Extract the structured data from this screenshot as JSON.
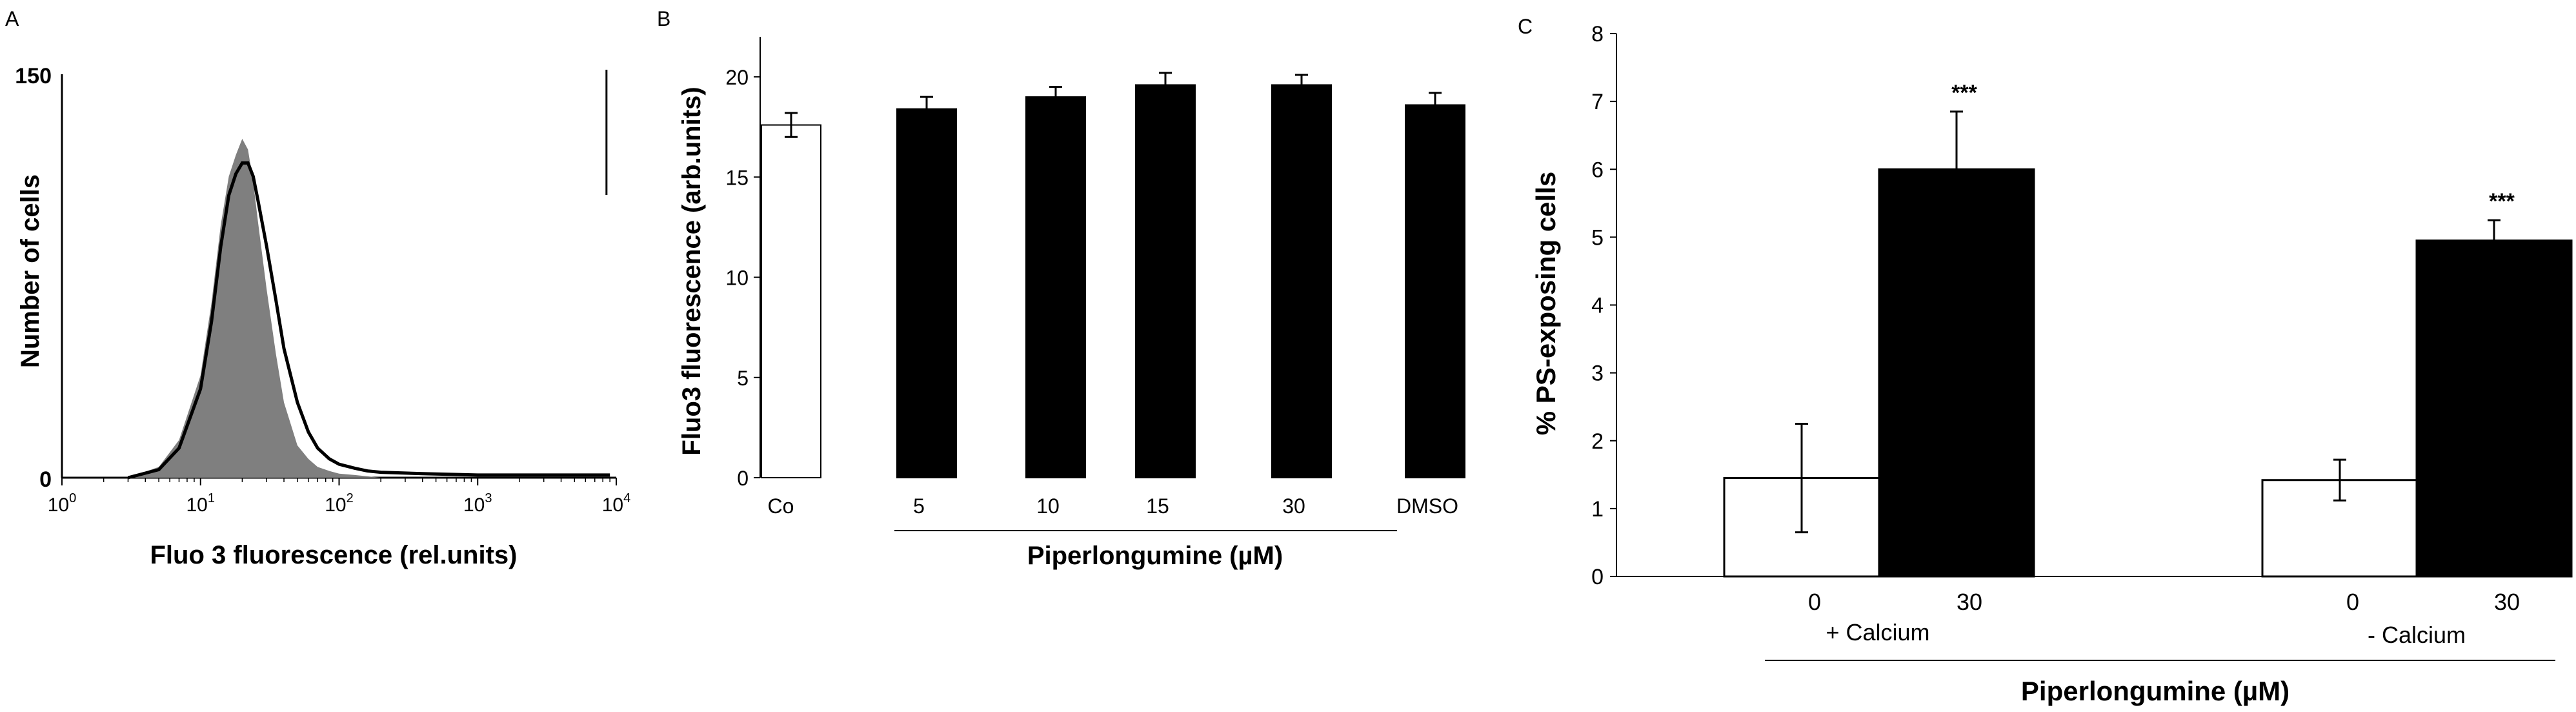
{
  "chart_data": [
    {
      "panel_label": "A",
      "type": "area",
      "ylabel": "Number of cells",
      "xlabel": "Fluo 3 fluorescence (rel.units)",
      "x_scale": "log",
      "xlim": [
        1,
        10000
      ],
      "ylim": [
        0,
        150
      ],
      "x_ticks": [
        {
          "value": 1,
          "base": "10",
          "exp": "0"
        },
        {
          "value": 10,
          "base": "10",
          "exp": "1"
        },
        {
          "value": 100,
          "base": "10",
          "exp": "2"
        },
        {
          "value": 1000,
          "base": "10",
          "exp": "3"
        },
        {
          "value": 10000,
          "base": "10",
          "exp": "4"
        }
      ],
      "y_ticks": [
        "150",
        "0"
      ],
      "series": [
        {
          "style": "filled",
          "color": "#7f7f7f",
          "x": [
            3,
            5,
            7,
            10,
            12,
            14,
            16,
            18,
            20,
            22,
            24,
            26,
            30,
            35,
            40,
            50,
            60,
            70,
            85,
            100,
            130,
            160,
            200
          ],
          "y": [
            0,
            4,
            14,
            38,
            65,
            94,
            112,
            120,
            126,
            122,
            110,
            95,
            70,
            46,
            28,
            12,
            7,
            4,
            2.5,
            1.5,
            1,
            0.5,
            0
          ]
        },
        {
          "style": "outline",
          "color": "#000000",
          "x": [
            3,
            5,
            7,
            10,
            12,
            14,
            16,
            18,
            20,
            22,
            24,
            26,
            30,
            35,
            40,
            50,
            60,
            70,
            85,
            100,
            130,
            160,
            200,
            400,
            1000,
            3000,
            6000,
            9000
          ],
          "y": [
            0,
            3,
            11,
            33,
            58,
            86,
            105,
            113,
            117,
            117,
            112,
            103,
            86,
            66,
            48,
            28,
            17,
            11,
            7,
            5,
            3.5,
            2.5,
            2,
            1.5,
            1,
            1,
            1,
            1
          ]
        }
      ],
      "marker_line_x": 8500
    },
    {
      "panel_label": "B",
      "type": "bar",
      "ylabel": "Fluo3 fluorescence (arb.units)",
      "ylim": [
        0,
        22
      ],
      "y_ticks": [
        "0",
        "5",
        "10",
        "15",
        "20"
      ],
      "y_tick_values": [
        0,
        5,
        10,
        15,
        20
      ],
      "categories": [
        "Co",
        "5",
        "10",
        "15",
        "30",
        "DMSO"
      ],
      "values": [
        17.6,
        18.4,
        19.0,
        19.6,
        19.6,
        18.6
      ],
      "errors": [
        0.6,
        0.6,
        0.5,
        0.6,
        0.5,
        0.6
      ],
      "colors": [
        "#ffffff",
        "#000000",
        "#000000",
        "#000000",
        "#000000",
        "#000000"
      ],
      "group_label": "Piperlongumine (µM)"
    },
    {
      "panel_label": "C",
      "type": "bar",
      "ylabel": "% PS-exposing cells",
      "ylim": [
        0,
        8
      ],
      "y_ticks": [
        "0",
        "1",
        "2",
        "3",
        "4",
        "5",
        "6",
        "7",
        "8"
      ],
      "y_tick_values": [
        0,
        1,
        2,
        3,
        4,
        5,
        6,
        7,
        8
      ],
      "categories": [
        "0",
        "30",
        "0",
        "30"
      ],
      "values": [
        1.45,
        6.0,
        1.42,
        4.95
      ],
      "errors": [
        0.8,
        0.85,
        0.3,
        0.3
      ],
      "colors": [
        "#ffffff",
        "#000000",
        "#ffffff",
        "#000000"
      ],
      "significance": [
        "",
        "***",
        "",
        "***"
      ],
      "groups": [
        "+ Calcium",
        "- Calcium"
      ],
      "group_label": "Piperlongumine (µM)"
    }
  ]
}
